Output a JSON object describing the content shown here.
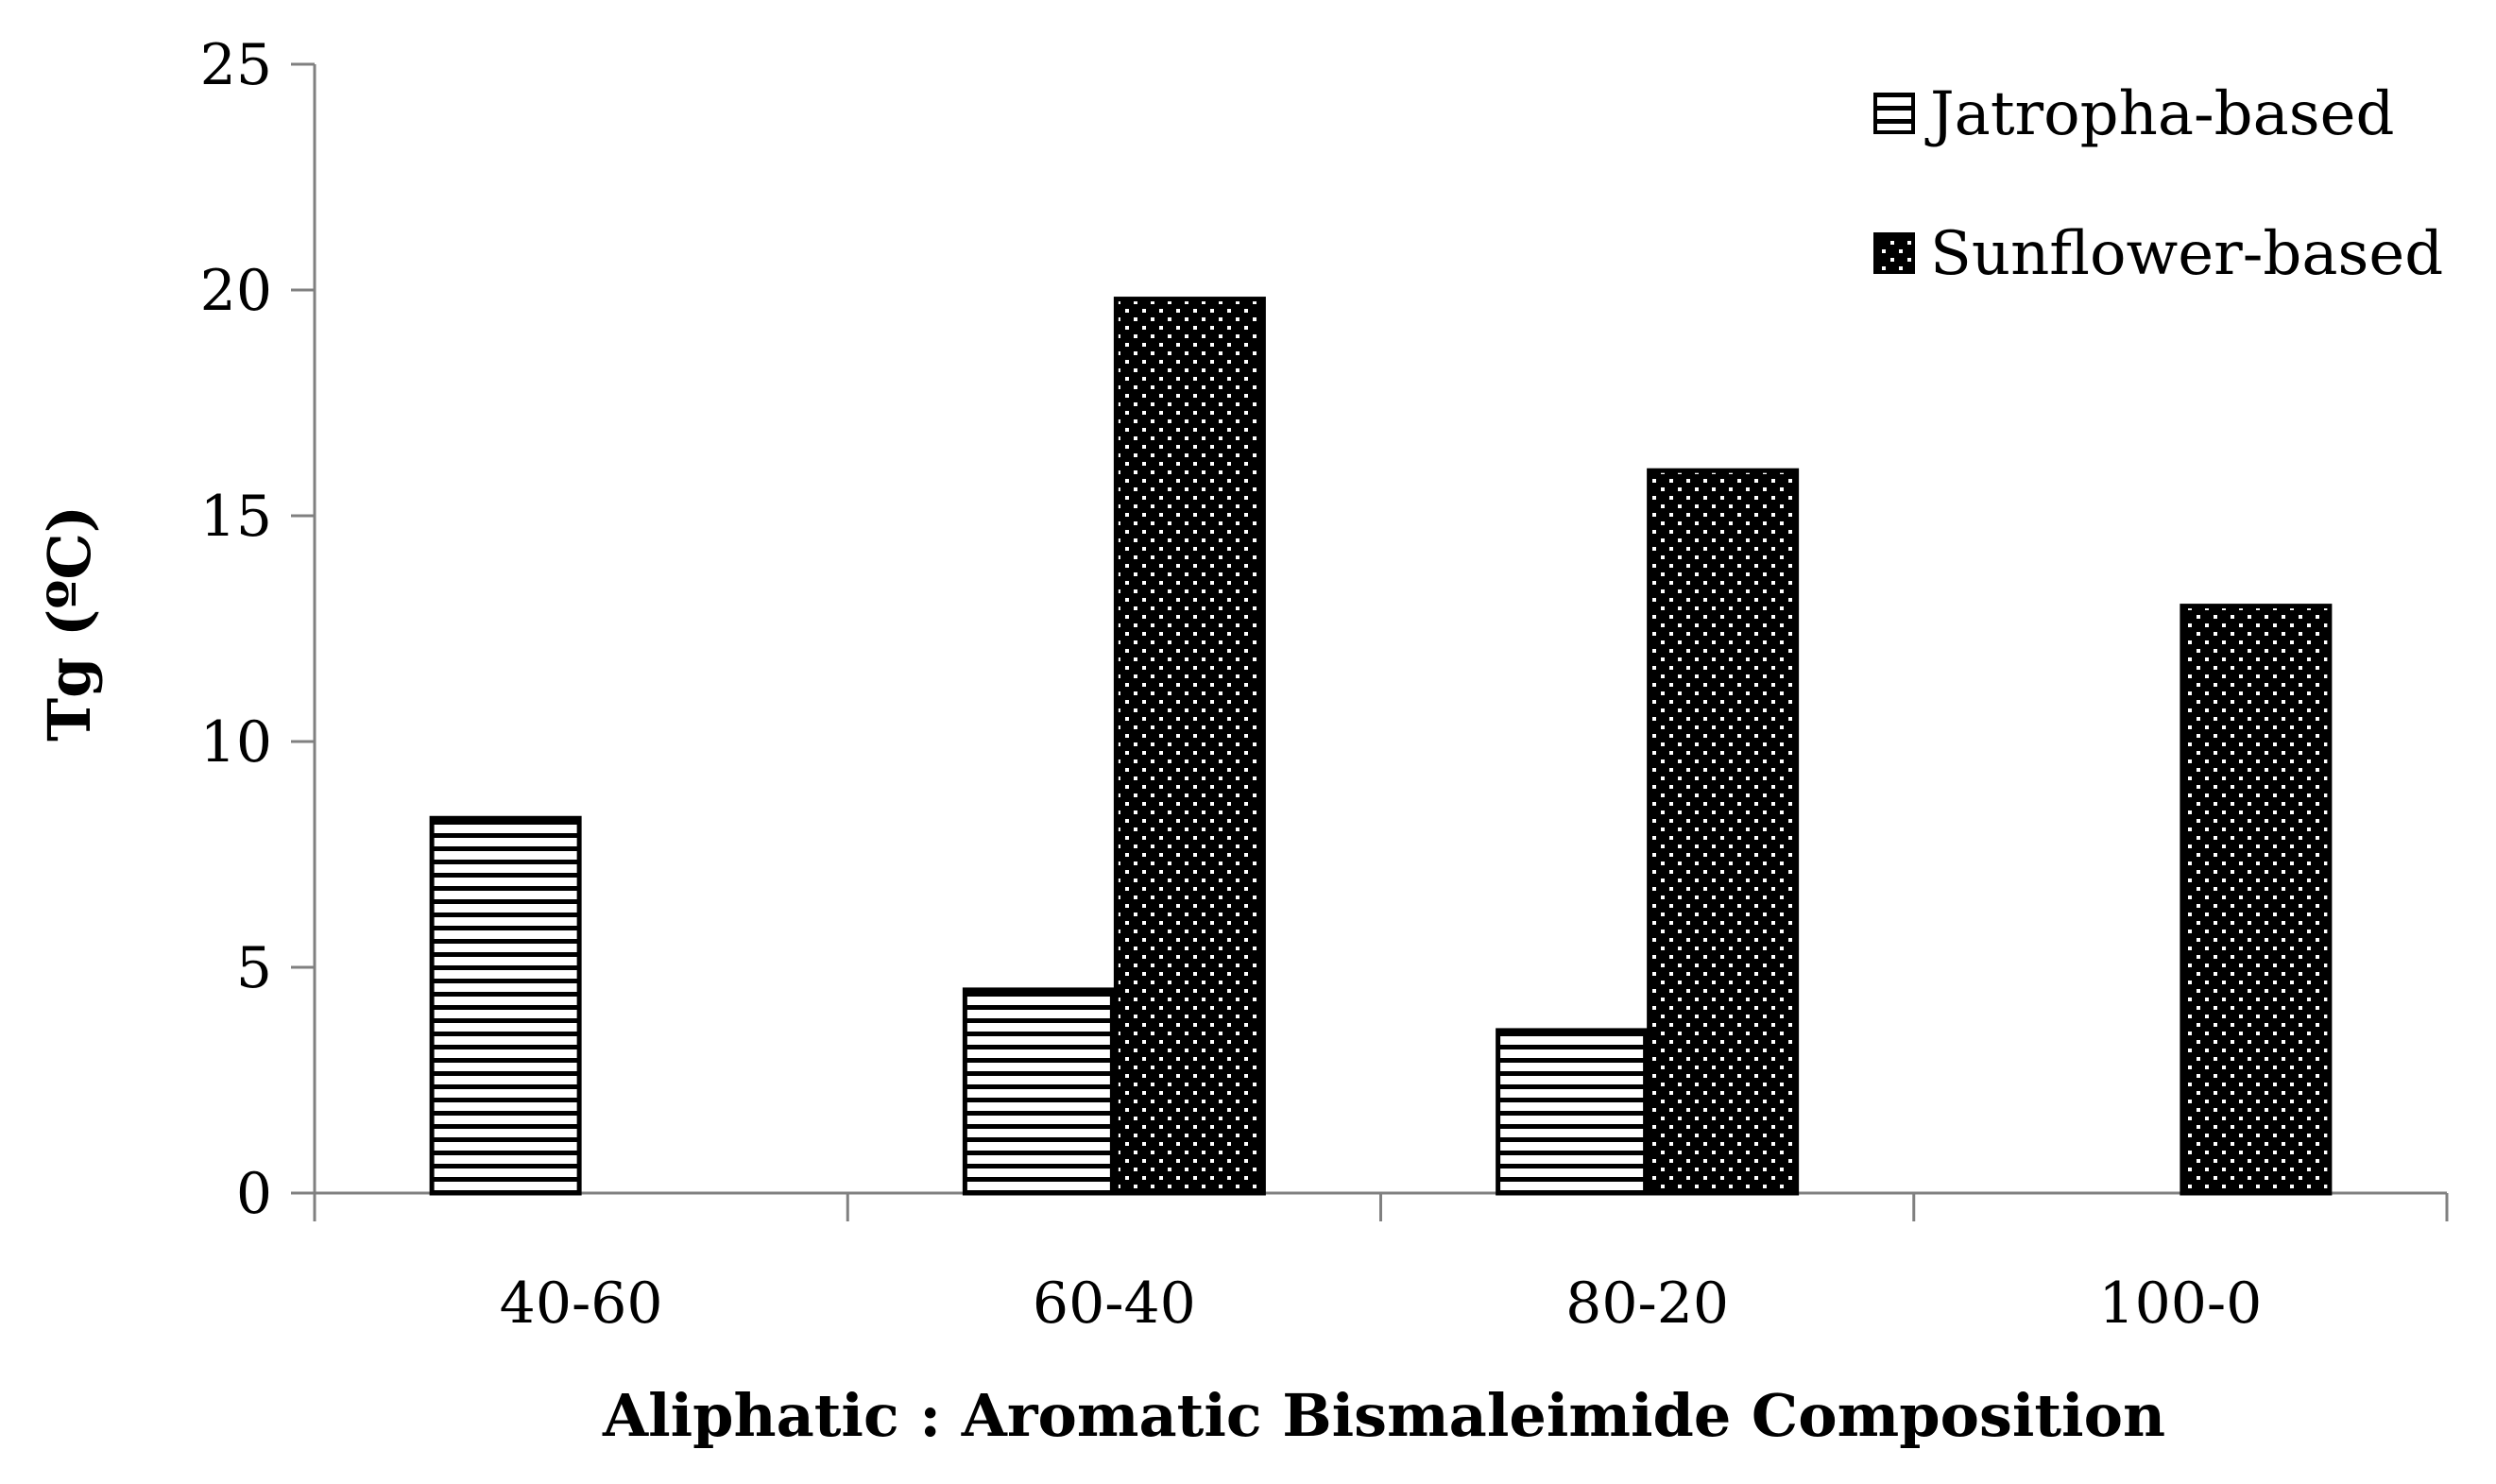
{
  "chart_data": {
    "type": "bar",
    "title": "",
    "xlabel": "Aliphatic : Aromatic Bismaleimide Composition",
    "ylabel": "Tg (ºC)",
    "categories": [
      "40-60",
      "60-40",
      "80-20",
      "100-0"
    ],
    "series": [
      {
        "name": "Jatropha-based",
        "pattern": "horizontal-stripes",
        "values": [
          8.3,
          4.5,
          3.6,
          null
        ]
      },
      {
        "name": "Sunflower-based",
        "pattern": "dots",
        "values": [
          null,
          19.8,
          16.0,
          13.0
        ]
      }
    ],
    "ylim": [
      0,
      25
    ],
    "yticks": [
      0,
      5,
      10,
      15,
      20,
      25
    ],
    "grid": false,
    "legend": "top-right",
    "colors": {
      "bar_fill": "#000000",
      "pattern_fg": "#ffffff",
      "axis": "#808080"
    }
  }
}
